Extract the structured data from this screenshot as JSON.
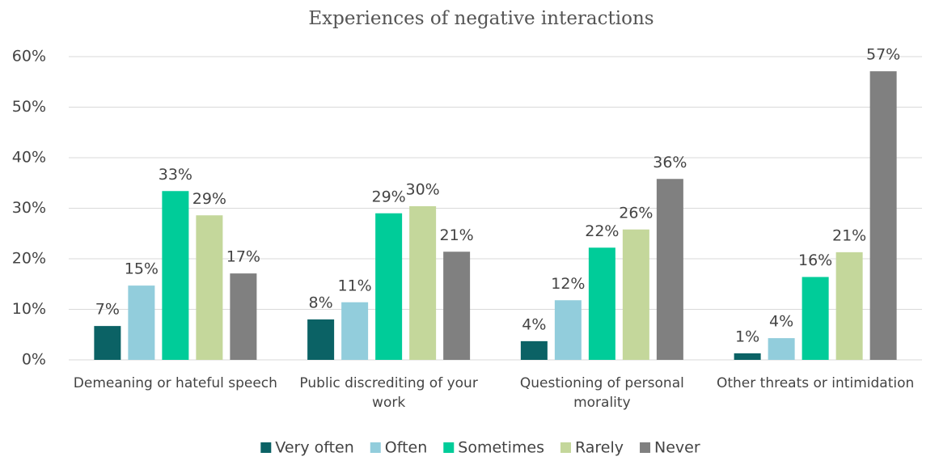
{
  "chart_data": {
    "type": "bar",
    "title": "Experiences of negative interactions",
    "categories": [
      "Demeaning or hateful speech",
      "Public discrediting of your work",
      "Questioning of personal morality",
      "Other threats or intimidation"
    ],
    "series": [
      {
        "name": "Very often",
        "color": "#0b6265",
        "values": [
          6.7,
          8.0,
          3.7,
          1.3
        ],
        "value_labels": [
          "7%",
          "8%",
          "4%",
          "1%"
        ]
      },
      {
        "name": "Often",
        "color": "#92cddc",
        "values": [
          14.7,
          11.4,
          11.8,
          4.3
        ],
        "value_labels": [
          "15%",
          "11%",
          "12%",
          "4%"
        ]
      },
      {
        "name": "Sometimes",
        "color": "#00cc99",
        "values": [
          33.4,
          29.0,
          22.2,
          16.4
        ],
        "value_labels": [
          "33%",
          "29%",
          "22%",
          "16%"
        ]
      },
      {
        "name": "Rarely",
        "color": "#c4d79b",
        "values": [
          28.6,
          30.4,
          25.8,
          21.3
        ],
        "value_labels": [
          "29%",
          "30%",
          "26%",
          "21%"
        ]
      },
      {
        "name": "Never",
        "color": "#808080",
        "values": [
          17.1,
          21.4,
          35.8,
          57.1
        ],
        "value_labels": [
          "17%",
          "21%",
          "36%",
          "57%"
        ]
      }
    ],
    "ylim": [
      0,
      60
    ],
    "yticks": [
      {
        "value": 0,
        "label": "0%"
      },
      {
        "value": 10,
        "label": "10%"
      },
      {
        "value": 20,
        "label": "20%"
      },
      {
        "value": 30,
        "label": "30%"
      },
      {
        "value": 40,
        "label": "40%"
      },
      {
        "value": 50,
        "label": "50%"
      },
      {
        "value": 60,
        "label": "60%"
      }
    ],
    "grid": true,
    "legend": "bottom"
  }
}
